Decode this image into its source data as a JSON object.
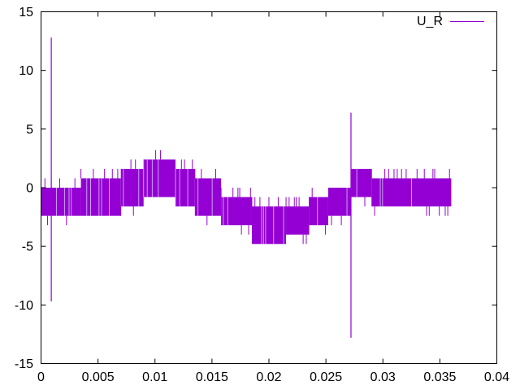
{
  "chart_data": {
    "type": "line",
    "title": "",
    "xlabel": "",
    "ylabel": "",
    "xlim": [
      0,
      0.04
    ],
    "ylim": [
      -15,
      15
    ],
    "grid": false,
    "legend_position": "top-right",
    "x_ticks": [
      "0",
      "0.005",
      "0.01",
      "0.015",
      "0.02",
      "0.025",
      "0.03",
      "0.035",
      "0.04"
    ],
    "y_ticks": [
      "15",
      "10",
      "5",
      "0",
      "-5",
      "-10",
      "-15"
    ],
    "x_tick_values": [
      0,
      0.005,
      0.01,
      0.015,
      0.02,
      0.025,
      0.03,
      0.035,
      0.04
    ],
    "y_tick_values": [
      15,
      10,
      5,
      0,
      -5,
      -10,
      -15
    ],
    "series": [
      {
        "name": "U_R",
        "color": "#9400d3",
        "switching_bands": [
          {
            "x": [
              0.0,
              0.0035
            ],
            "low": -2.4,
            "high": 0.0,
            "min": -3.2
          },
          {
            "x": [
              0.0035,
              0.007
            ],
            "low": -2.4,
            "high": 0.8,
            "min": -2.4
          },
          {
            "x": [
              0.007,
              0.009
            ],
            "low": -1.6,
            "high": 1.6,
            "min": -2.4
          },
          {
            "x": [
              0.009,
              0.0118
            ],
            "low": -0.8,
            "high": 2.4,
            "min": -0.8
          },
          {
            "x": [
              0.0118,
              0.0135
            ],
            "low": -1.6,
            "high": 1.6,
            "min": -2.4
          },
          {
            "x": [
              0.0135,
              0.0158
            ],
            "low": -2.4,
            "high": 0.8,
            "min": -3.2
          },
          {
            "x": [
              0.0158,
              0.0185
            ],
            "low": -3.2,
            "high": -0.8,
            "min": -4.0
          },
          {
            "x": [
              0.0185,
              0.0215
            ],
            "low": -4.8,
            "high": -1.6,
            "min": -4.8
          },
          {
            "x": [
              0.0215,
              0.0235
            ],
            "low": -4.0,
            "high": -1.6,
            "min": -4.8
          },
          {
            "x": [
              0.0235,
              0.0252
            ],
            "low": -3.2,
            "high": -0.8,
            "min": -4.0
          },
          {
            "x": [
              0.0252,
              0.0272
            ],
            "low": -2.4,
            "high": 0.0,
            "min": -3.2
          },
          {
            "x": [
              0.0272,
              0.029
            ],
            "low": -0.8,
            "high": 1.6,
            "min": -1.6
          },
          {
            "x": [
              0.029,
              0.036
            ],
            "low": -1.6,
            "high": 0.8,
            "min": -2.4
          }
        ],
        "spikes": [
          {
            "x": 0.0009,
            "max": 12.8,
            "min": -9.7
          },
          {
            "x": 0.0272,
            "max": 6.4,
            "min": -12.8
          }
        ]
      }
    ]
  }
}
